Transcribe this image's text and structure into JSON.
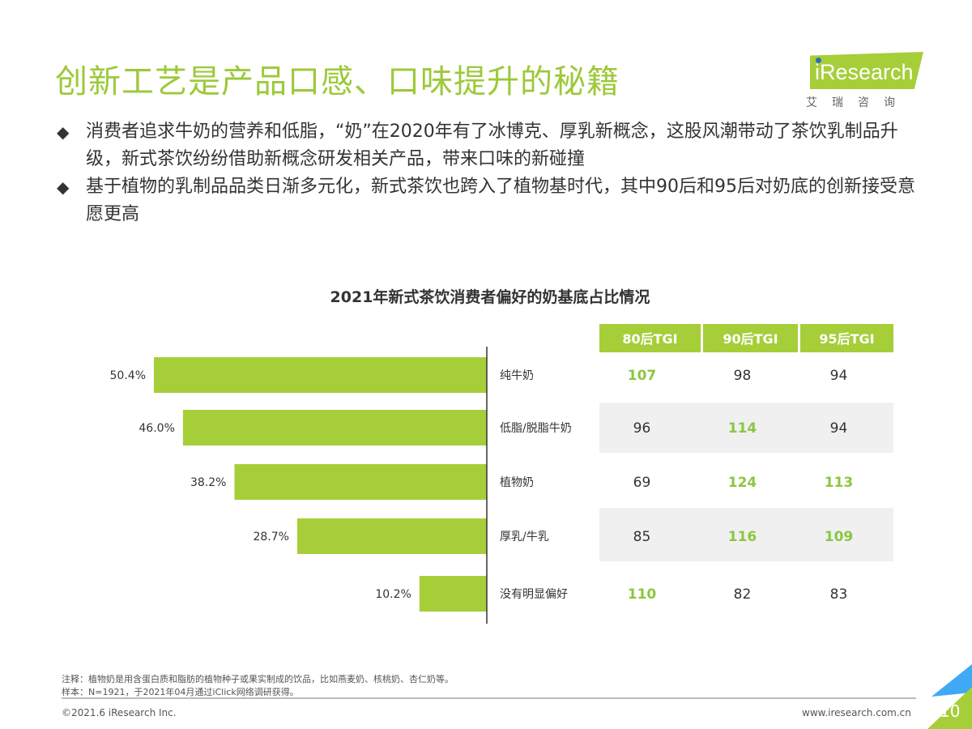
{
  "title": "创新工艺是产品口感、口味提升的秘籍",
  "logo": {
    "brand": "iResearch",
    "cn": "艾瑞咨询"
  },
  "bullets": [
    "消费者追求牛奶的营养和低脂，“奶”在2020年有了冰博克、厚乳新概念，这股风潮带动了茶饮乳制品升级，新式茶饮纷纷借助新概念研发相关产品，带来口味的新碰撞",
    "基于植物的乳制品品类日渐多元化，新式茶饮也跨入了植物基时代，其中90后和95后对奶底的创新接受意愿更高"
  ],
  "chart_data": {
    "type": "bar",
    "title": "2021年新式茶饮消费者偏好的奶基底占比情况",
    "categories": [
      "纯牛奶",
      "低脂/脱脂牛奶",
      "植物奶",
      "厚乳/牛乳",
      "没有明显偏好"
    ],
    "values": [
      50.4,
      46.0,
      38.2,
      28.7,
      10.2
    ],
    "value_labels": [
      "50.4%",
      "46.0%",
      "38.2%",
      "28.7%",
      "10.2%"
    ],
    "bar_color": "#a6ce39",
    "table": {
      "headers": [
        "80后TGI",
        "90后TGI",
        "95后TGI"
      ],
      "rows": [
        [
          107,
          98,
          94
        ],
        [
          96,
          114,
          94
        ],
        [
          69,
          124,
          113
        ],
        [
          85,
          116,
          109
        ],
        [
          110,
          82,
          83
        ]
      ],
      "highlight": [
        [
          true,
          false,
          false
        ],
        [
          false,
          true,
          false
        ],
        [
          false,
          true,
          true
        ],
        [
          false,
          true,
          true
        ],
        [
          true,
          false,
          false
        ]
      ]
    }
  },
  "notes": [
    "注释：植物奶是用含蛋白质和脂肪的植物种子或果实制成的饮品，比如燕麦奶、核桃奶、杏仁奶等。",
    "样本：N=1921，于2021年04月通过iClick网络调研获得。"
  ],
  "footer": {
    "copyright": "©2021.6 iResearch Inc.",
    "url": "www.iresearch.com.cn",
    "page": "10"
  }
}
